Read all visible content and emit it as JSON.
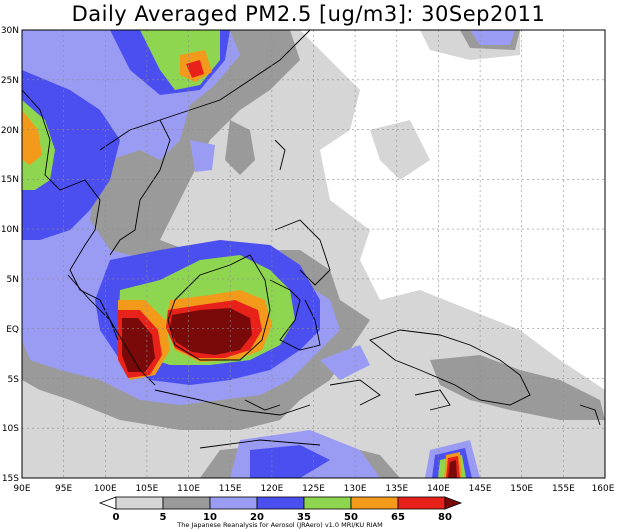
{
  "title": "Daily Averaged PM2.5 [ug/m3]: 30Sep2011",
  "axes": {
    "x_labels": [
      "90E",
      "95E",
      "100E",
      "105E",
      "110E",
      "115E",
      "120E",
      "125E",
      "130E",
      "135E",
      "140E",
      "145E",
      "150E",
      "155E",
      "160E"
    ],
    "y_labels": [
      "30N",
      "25N",
      "20N",
      "15N",
      "10N",
      "5N",
      "EQ",
      "5S",
      "10S",
      "15S"
    ],
    "lon_range": [
      90,
      160
    ],
    "lat_range": [
      -15,
      30
    ]
  },
  "colorbar": {
    "levels": [
      "0",
      "5",
      "10",
      "20",
      "35",
      "50",
      "65",
      "80"
    ],
    "colors": [
      "#ffffff",
      "#d6d6d6",
      "#9a9a9a",
      "#9a9cf4",
      "#4b4ff0",
      "#8ed64f",
      "#f39a1b",
      "#e8221a",
      "#7a0a0a"
    ],
    "credit": "The Japanese Reanalysis for Aerosol (JRAero) v1.0 MRI/KU RIAM"
  },
  "map_style": {
    "gridlines": true,
    "coastline_color": "#000000"
  }
}
